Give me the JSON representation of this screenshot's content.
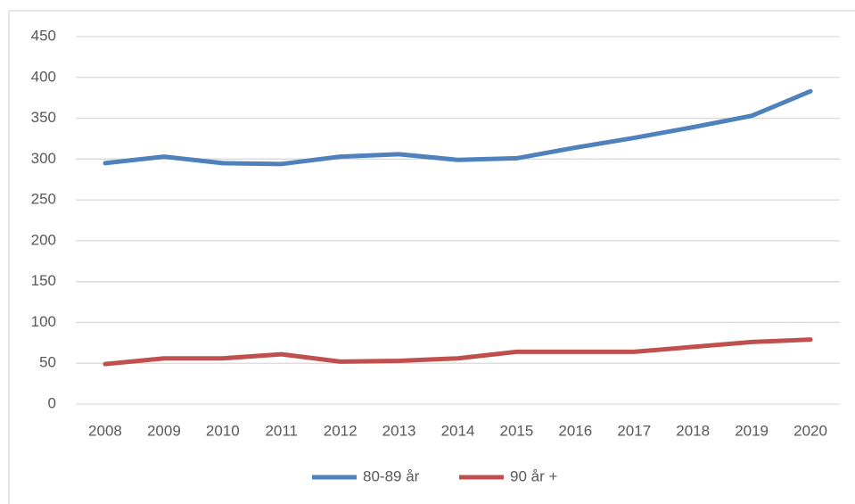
{
  "chart_data": {
    "type": "line",
    "categories": [
      "2008",
      "2009",
      "2010",
      "2011",
      "2012",
      "2013",
      "2014",
      "2015",
      "2016",
      "2017",
      "2018",
      "2019",
      "2020"
    ],
    "series": [
      {
        "name": "80-89 år",
        "color": "#4f81bd",
        "values": [
          295,
          303,
          295,
          294,
          303,
          306,
          299,
          301,
          314,
          326,
          339,
          353,
          383
        ]
      },
      {
        "name": "90 år +",
        "color": "#c0504d",
        "values": [
          49,
          56,
          56,
          61,
          52,
          53,
          56,
          64,
          64,
          64,
          70,
          76,
          79
        ]
      }
    ],
    "ylim": [
      0,
      450
    ],
    "yticks": [
      0,
      50,
      100,
      150,
      200,
      250,
      300,
      350,
      400,
      450
    ],
    "grid": true
  }
}
